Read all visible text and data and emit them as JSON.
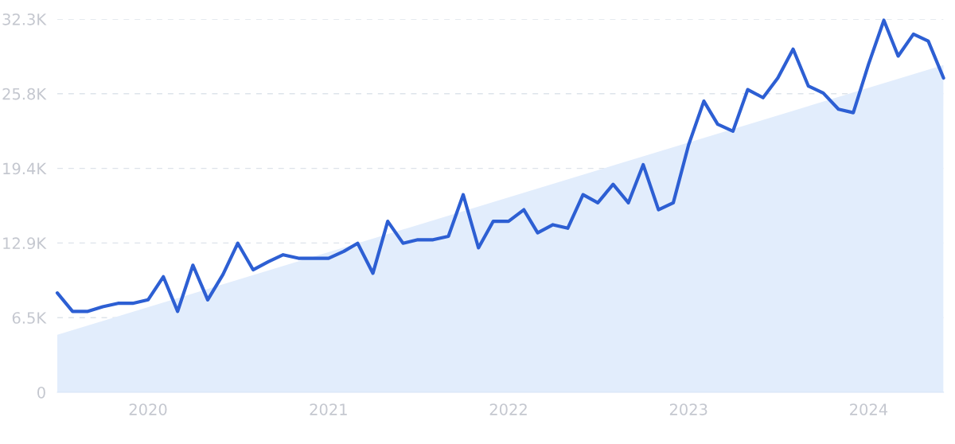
{
  "chart_data": {
    "type": "line",
    "x": [
      "2019-07",
      "2019-08",
      "2019-09",
      "2019-10",
      "2019-11",
      "2019-12",
      "2020-01",
      "2020-02",
      "2020-03",
      "2020-04",
      "2020-05",
      "2020-06",
      "2020-07",
      "2020-08",
      "2020-09",
      "2020-10",
      "2020-11",
      "2020-12",
      "2021-01",
      "2021-02",
      "2021-03",
      "2021-04",
      "2021-05",
      "2021-06",
      "2021-07",
      "2021-08",
      "2021-09",
      "2021-10",
      "2021-11",
      "2021-12",
      "2022-01",
      "2022-02",
      "2022-03",
      "2022-04",
      "2022-05",
      "2022-06",
      "2022-07",
      "2022-08",
      "2022-09",
      "2022-10",
      "2022-11",
      "2022-12",
      "2023-01",
      "2023-02",
      "2023-03",
      "2023-04",
      "2023-05",
      "2023-06",
      "2023-07",
      "2023-08",
      "2023-09",
      "2023-10",
      "2023-11",
      "2023-12",
      "2024-01",
      "2024-02",
      "2024-03",
      "2024-04",
      "2024-05",
      "2024-06"
    ],
    "series": [
      {
        "type": "area",
        "color": "#e2edfc",
        "x": [
          "2019-07",
          "2024-06"
        ],
        "values": [
          4980,
          28330
        ]
      },
      {
        "color": "#2d5fd3",
        "values": [
          8600,
          7000,
          7000,
          7400,
          7700,
          7700,
          8000,
          10000,
          7000,
          11000,
          8000,
          10200,
          12900,
          10600,
          11300,
          11900,
          11600,
          11600,
          11600,
          12200,
          12900,
          10300,
          14800,
          12900,
          13200,
          13200,
          13500,
          17100,
          12500,
          14800,
          14800,
          15800,
          13800,
          14500,
          14200,
          17100,
          16400,
          18000,
          16400,
          19700,
          15800,
          16400,
          21400,
          25200,
          23200,
          22600,
          26200,
          25500,
          27200,
          29700,
          26500,
          25900,
          24500,
          24200,
          28400,
          32200,
          29100,
          31000,
          30400,
          27200
        ]
      }
    ],
    "xlim": [
      "2019-07",
      "2024-06"
    ],
    "xticks": [
      {
        "value": "2020-01",
        "label": "2020"
      },
      {
        "value": "2021-01",
        "label": "2021"
      },
      {
        "value": "2022-01",
        "label": "2022"
      },
      {
        "value": "2023-01",
        "label": "2023"
      },
      {
        "value": "2024-01",
        "label": "2024"
      }
    ],
    "ylim": [
      0,
      32300
    ],
    "yticks": [
      0,
      {
        "value": 6460,
        "label": "6.5K"
      },
      {
        "value": 12920,
        "label": "12.9K"
      },
      {
        "value": 19380,
        "label": "19.4K"
      },
      {
        "value": 25840,
        "label": "25.8K"
      },
      {
        "value": 32300,
        "label": "32.3K"
      }
    ],
    "grid": "y",
    "line_style": "solid"
  }
}
